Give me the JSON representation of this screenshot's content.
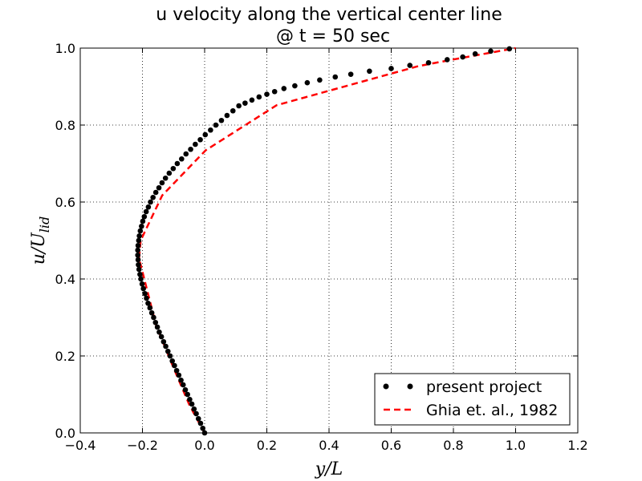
{
  "chart_data": {
    "type": "scatter",
    "title_lines": [
      "u velocity along the vertical center line",
      "@ t = 50 sec"
    ],
    "xlabel": "y/L",
    "ylabel": "u/U_lid",
    "xlim": [
      -0.4,
      1.2
    ],
    "ylim": [
      0.0,
      1.0
    ],
    "x_ticks": [
      -0.4,
      -0.2,
      0.0,
      0.2,
      0.4,
      0.6,
      0.8,
      1.0,
      1.2
    ],
    "x_tick_labels": [
      "−0.4",
      "−0.2",
      "0.0",
      "0.2",
      "0.4",
      "0.6",
      "0.8",
      "1.0",
      "1.2"
    ],
    "y_ticks": [
      0.0,
      0.2,
      0.4,
      0.6,
      0.8,
      1.0
    ],
    "y_tick_labels": [
      "0.0",
      "0.2",
      "0.4",
      "0.6",
      "0.8",
      "1.0"
    ],
    "grid": true,
    "legend_position": "lower-right",
    "series": [
      {
        "name": "present project",
        "style": "markers",
        "color": "#000000",
        "x": [
          0.0,
          -0.006,
          -0.013,
          -0.02,
          -0.027,
          -0.034,
          -0.041,
          -0.048,
          -0.055,
          -0.062,
          -0.069,
          -0.076,
          -0.083,
          -0.09,
          -0.097,
          -0.104,
          -0.111,
          -0.118,
          -0.125,
          -0.132,
          -0.139,
          -0.146,
          -0.152,
          -0.158,
          -0.164,
          -0.17,
          -0.176,
          -0.182,
          -0.187,
          -0.192,
          -0.197,
          -0.201,
          -0.205,
          -0.208,
          -0.211,
          -0.213,
          -0.214,
          -0.215,
          -0.215,
          -0.214,
          -0.212,
          -0.21,
          -0.207,
          -0.203,
          -0.199,
          -0.194,
          -0.188,
          -0.181,
          -0.174,
          -0.166,
          -0.157,
          -0.147,
          -0.137,
          -0.126,
          -0.114,
          -0.101,
          -0.088,
          -0.074,
          -0.06,
          -0.045,
          -0.03,
          -0.014,
          0.002,
          0.019,
          0.036,
          0.054,
          0.072,
          0.091,
          0.11,
          0.13,
          0.152,
          0.175,
          0.2,
          0.225,
          0.255,
          0.29,
          0.33,
          0.37,
          0.42,
          0.47,
          0.53,
          0.6,
          0.66,
          0.72,
          0.78,
          0.83,
          0.87,
          0.92,
          0.98
        ],
        "y": [
          0.0,
          0.012,
          0.025,
          0.037,
          0.05,
          0.062,
          0.075,
          0.087,
          0.1,
          0.112,
          0.125,
          0.137,
          0.15,
          0.162,
          0.175,
          0.187,
          0.2,
          0.212,
          0.225,
          0.237,
          0.25,
          0.262,
          0.275,
          0.287,
          0.3,
          0.312,
          0.325,
          0.337,
          0.35,
          0.362,
          0.375,
          0.387,
          0.4,
          0.412,
          0.425,
          0.437,
          0.45,
          0.462,
          0.475,
          0.487,
          0.5,
          0.512,
          0.525,
          0.537,
          0.55,
          0.562,
          0.575,
          0.587,
          0.6,
          0.612,
          0.625,
          0.637,
          0.65,
          0.662,
          0.675,
          0.687,
          0.7,
          0.712,
          0.725,
          0.737,
          0.75,
          0.762,
          0.775,
          0.787,
          0.8,
          0.812,
          0.825,
          0.837,
          0.85,
          0.857,
          0.865,
          0.873,
          0.88,
          0.887,
          0.895,
          0.902,
          0.91,
          0.917,
          0.925,
          0.932,
          0.94,
          0.947,
          0.955,
          0.962,
          0.97,
          0.977,
          0.985,
          0.992,
          0.998
        ]
      },
      {
        "name": "Ghia et. al., 1982",
        "style": "dashed-line",
        "color": "#ff0000",
        "x": [
          0.0,
          -0.03717,
          -0.04192,
          -0.04775,
          -0.06434,
          -0.1015,
          -0.15662,
          -0.2109,
          -0.20581,
          -0.13641,
          0.00332,
          0.23151,
          0.68717,
          0.73722,
          0.78871,
          0.84123,
          1.0
        ],
        "y": [
          0.0,
          0.0547,
          0.0625,
          0.0703,
          0.1016,
          0.1719,
          0.2813,
          0.4531,
          0.5,
          0.6172,
          0.7344,
          0.8516,
          0.9531,
          0.9609,
          0.9688,
          0.9766,
          1.0
        ]
      }
    ]
  }
}
